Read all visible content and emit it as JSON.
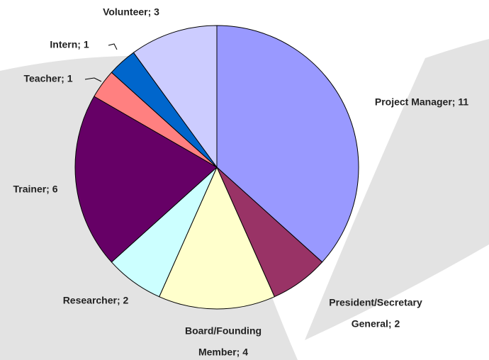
{
  "chart_data": {
    "type": "pie",
    "values": [
      11,
      2,
      4,
      2,
      6,
      1,
      1,
      3
    ],
    "value_labels": [
      [
        "Project Manager; 11"
      ],
      [
        "President/Secretary",
        "General; 2"
      ],
      [
        "Board/Founding",
        "Member; 4"
      ],
      [
        "Researcher; 2"
      ],
      [
        "Trainer; 6"
      ],
      [
        "Teacher; 1"
      ],
      [
        "Intern; 1"
      ],
      [
        "Volunteer; 3"
      ]
    ],
    "colors": [
      "#9999ff",
      "#993366",
      "#ffffcc",
      "#ccffff",
      "#660066",
      "#ff8080",
      "#0066cc",
      "#ccccff"
    ]
  }
}
